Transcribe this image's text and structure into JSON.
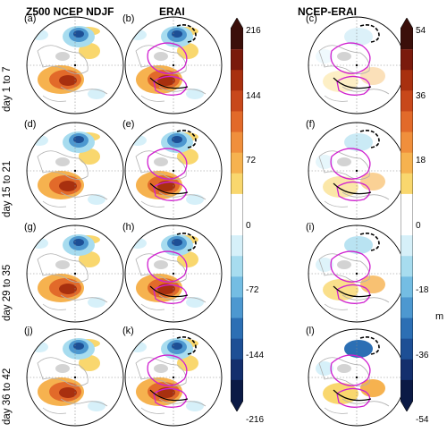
{
  "column_titles": [
    "Z500 NCEP NDJF",
    "ERAI",
    "NCEP-ERAI"
  ],
  "row_labels": [
    "day 1 to 7",
    "day 15 to 21",
    "day 29 to 35",
    "day 36 to 42"
  ],
  "panel_letters": [
    "(a)",
    "(b)",
    "(c)",
    "(d)",
    "(e)",
    "(f)",
    "(g)",
    "(h)",
    "(i)",
    "(j)",
    "(k)",
    "(l)"
  ],
  "colorbar1": {
    "ticks": [
      "216",
      "144",
      "72",
      "0",
      "-72",
      "-144",
      "-216"
    ],
    "colors": [
      "#3b0f0a",
      "#7a1a0c",
      "#a8300f",
      "#c8481b",
      "#e26a2a",
      "#f08f3c",
      "#f6b24f",
      "#f9d76e",
      "#ffffff",
      "#ffffff",
      "#d6f0f9",
      "#a7dcef",
      "#74bde3",
      "#4d98d0",
      "#2c6fb4",
      "#1d4f95",
      "#142f6d",
      "#0b1a45"
    ]
  },
  "colorbar2": {
    "ticks": [
      "54",
      "36",
      "18",
      "0",
      "-18",
      "-36",
      "-54"
    ],
    "unit": "m",
    "colors": [
      "#3b0f0a",
      "#7a1a0c",
      "#a8300f",
      "#c8481b",
      "#e26a2a",
      "#f08f3c",
      "#f6b24f",
      "#f9d76e",
      "#ffffff",
      "#ffffff",
      "#d6f0f9",
      "#a7dcef",
      "#74bde3",
      "#4d98d0",
      "#2c6fb4",
      "#1d4f95",
      "#142f6d",
      "#0b1a45"
    ]
  }
}
